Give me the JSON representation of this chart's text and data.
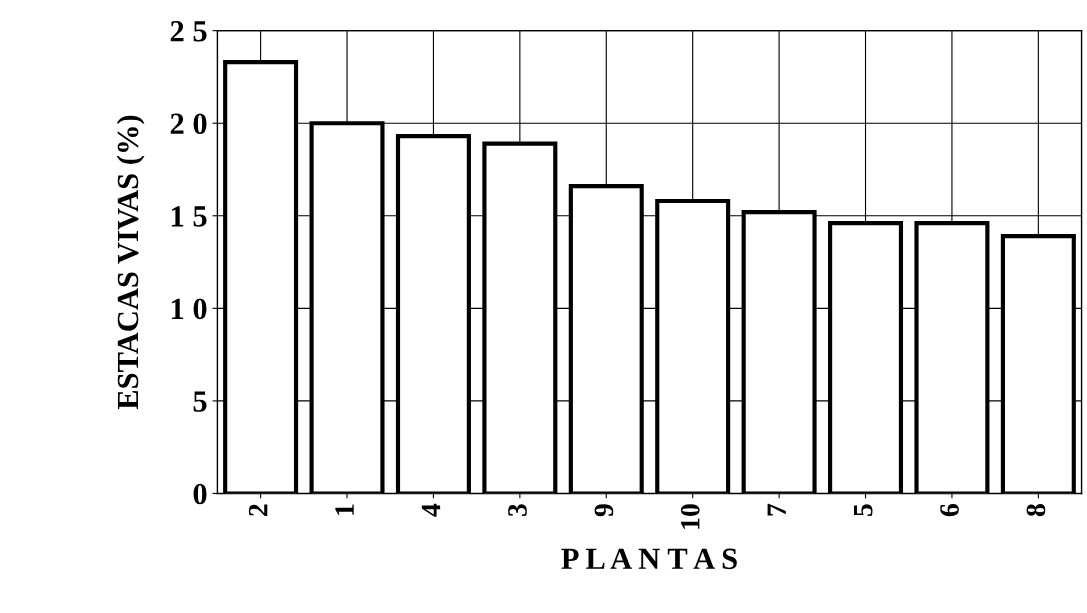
{
  "chart_data": {
    "type": "bar",
    "xlabel": "P L A N T A S",
    "ylabel": "ESTACAS VIVAS (%)",
    "categories": [
      "2",
      "1",
      "4",
      "3",
      "9",
      "10",
      "7",
      "5",
      "6",
      "8"
    ],
    "values": [
      23.3,
      20.0,
      19.3,
      18.9,
      16.6,
      15.8,
      15.2,
      14.6,
      14.6,
      13.9
    ],
    "color": "#ffffff",
    "ylim": [
      0,
      25
    ],
    "yticks": [
      0,
      5,
      {
        "value": 10,
        "label": "1 0"
      },
      {
        "value": 15,
        "label": "1 5"
      },
      {
        "value": 20,
        "label": "2 0"
      },
      {
        "value": 25,
        "label": "2 5"
      }
    ],
    "grid": true
  }
}
